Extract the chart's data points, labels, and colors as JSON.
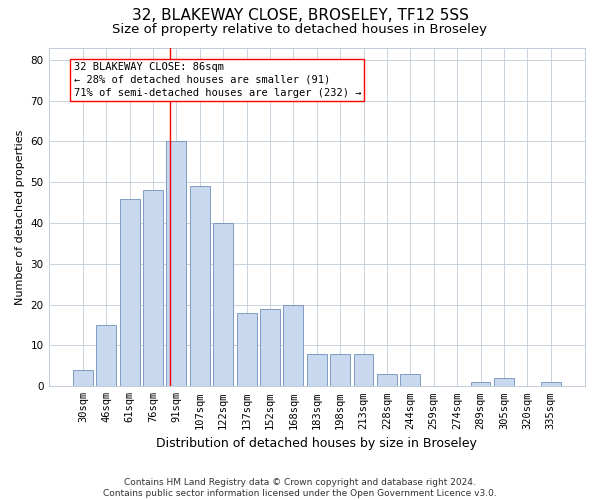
{
  "title1": "32, BLAKEWAY CLOSE, BROSELEY, TF12 5SS",
  "title2": "Size of property relative to detached houses in Broseley",
  "xlabel": "Distribution of detached houses by size in Broseley",
  "ylabel": "Number of detached properties",
  "categories": [
    "30sqm",
    "46sqm",
    "61sqm",
    "76sqm",
    "91sqm",
    "107sqm",
    "122sqm",
    "137sqm",
    "152sqm",
    "168sqm",
    "183sqm",
    "198sqm",
    "213sqm",
    "228sqm",
    "244sqm",
    "259sqm",
    "274sqm",
    "289sqm",
    "305sqm",
    "320sqm",
    "335sqm"
  ],
  "values": [
    4,
    15,
    46,
    48,
    60,
    49,
    40,
    18,
    19,
    20,
    8,
    8,
    8,
    3,
    3,
    0,
    0,
    1,
    2,
    0,
    1
  ],
  "bar_color": "#c8d8ee",
  "bar_edge_color": "#7090b8",
  "grid_color": "#c0ccd8",
  "annotation_box_text": "32 BLAKEWAY CLOSE: 86sqm\n← 28% of detached houses are smaller (91)\n71% of semi-detached houses are larger (232) →",
  "vline_x": 3.73,
  "footer1": "Contains HM Land Registry data © Crown copyright and database right 2024.",
  "footer2": "Contains public sector information licensed under the Open Government Licence v3.0.",
  "ylim": [
    0,
    83
  ],
  "title1_fontsize": 11,
  "title2_fontsize": 9.5,
  "xlabel_fontsize": 9,
  "ylabel_fontsize": 8,
  "tick_fontsize": 7.5,
  "annotation_fontsize": 7.5,
  "footer_fontsize": 6.5
}
